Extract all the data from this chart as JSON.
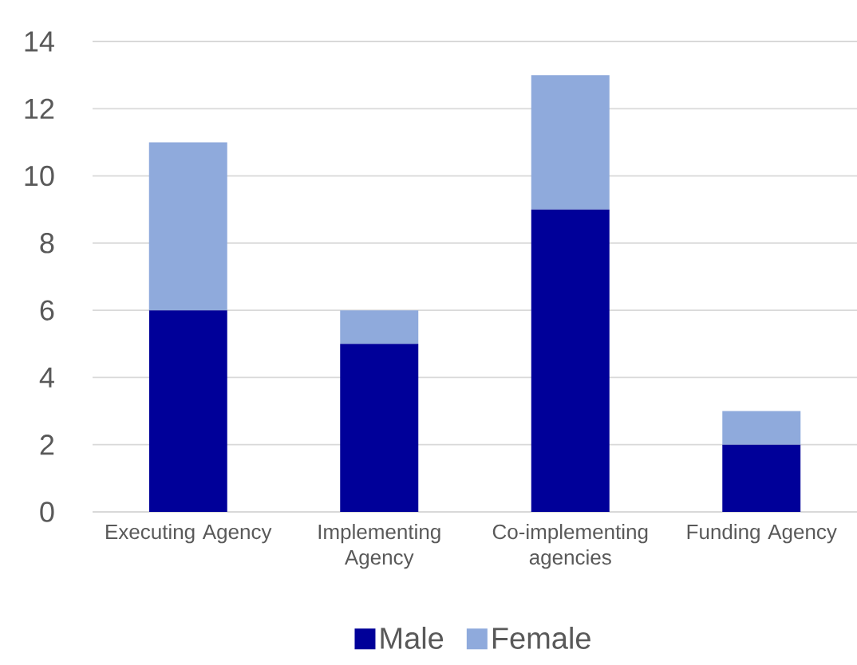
{
  "chart_data": {
    "type": "bar",
    "stacked": true,
    "categories": [
      "Executing Agency",
      "Implementing Agency",
      "Co-implementing agencies",
      "Funding Agency"
    ],
    "series": [
      {
        "name": "Male",
        "color": "#000099",
        "values": [
          6,
          5,
          9,
          2
        ]
      },
      {
        "name": "Female",
        "color": "#8faadc",
        "values": [
          5,
          1,
          4,
          1
        ]
      }
    ],
    "ylim": [
      0,
      14
    ],
    "yticks": [
      0,
      2,
      4,
      6,
      8,
      10,
      12,
      14
    ],
    "grid": "y",
    "legend": "bottom"
  }
}
